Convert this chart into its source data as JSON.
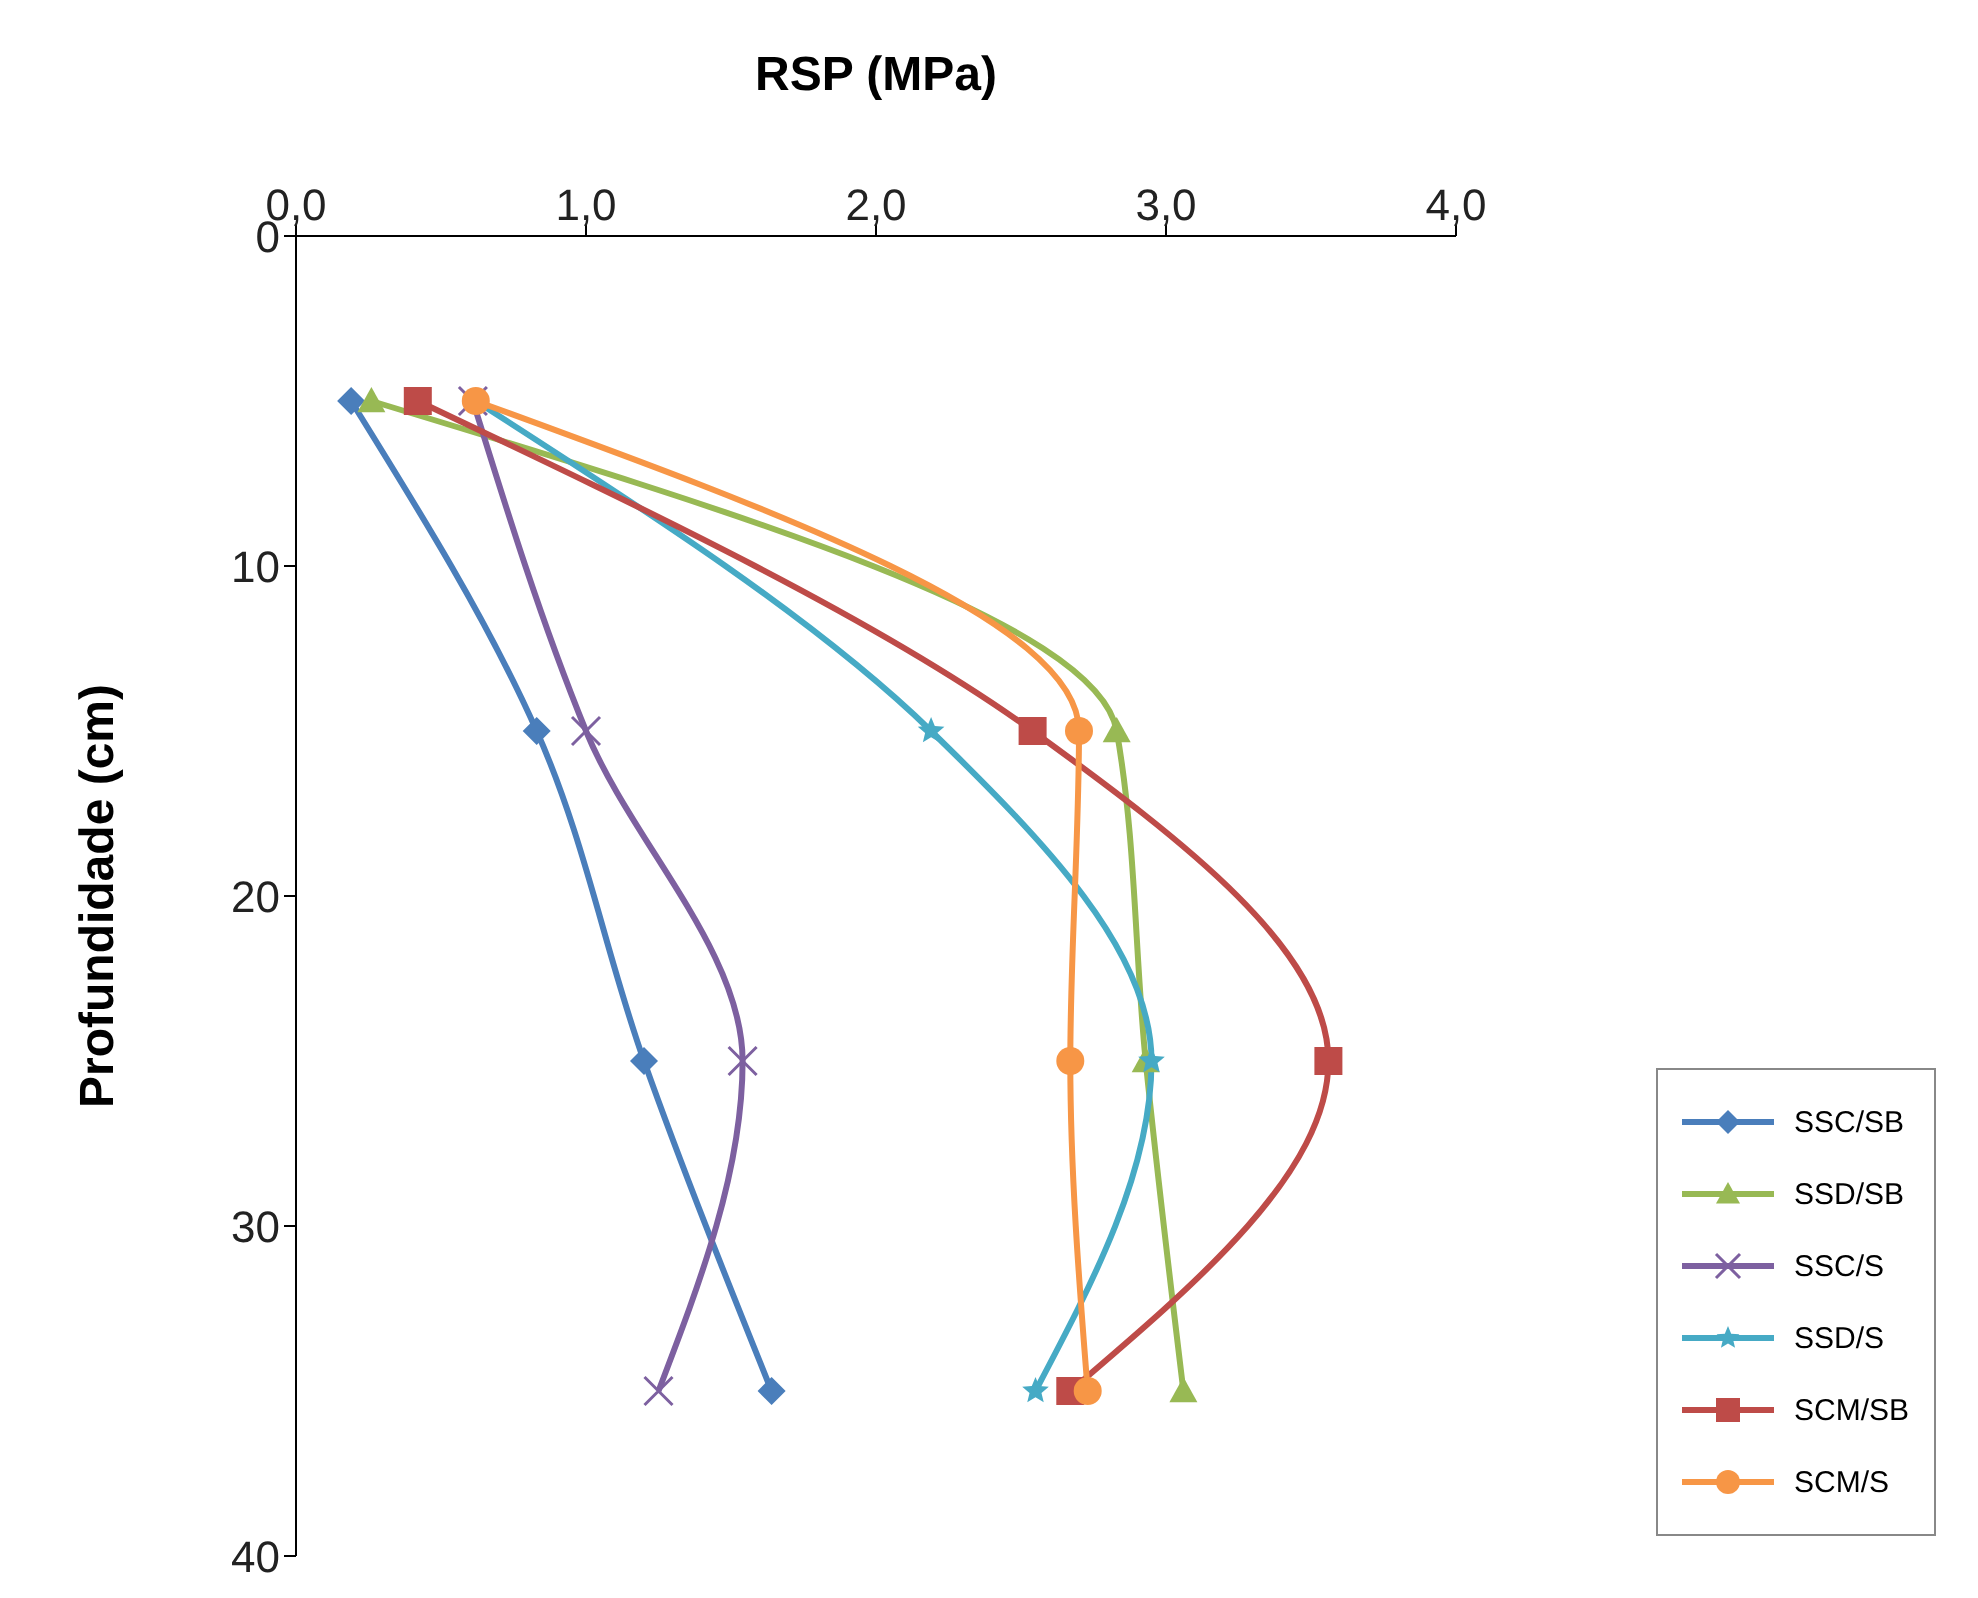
{
  "chart_data": {
    "type": "line",
    "orientation": "horizontal",
    "xlabel": "RSP (MPa)",
    "ylabel": "Profundidade (cm)",
    "x": [
      5,
      15,
      25,
      35
    ],
    "xlim": [
      0,
      4
    ],
    "xticks": [
      {
        "value": 0,
        "label": "0,0"
      },
      {
        "value": 1,
        "label": "1,0"
      },
      {
        "value": 2,
        "label": "2,0"
      },
      {
        "value": 3,
        "label": "3,0"
      },
      {
        "value": 4,
        "label": "4,0"
      }
    ],
    "ylim": [
      40,
      0
    ],
    "yticks": [
      0,
      10,
      20,
      30,
      40
    ],
    "grid": false,
    "legend": "bottom right",
    "series": [
      {
        "name": "SSC/SB",
        "color": "#4a7ebb",
        "marker": "diamond",
        "values": [
          0.19,
          0.83,
          1.2,
          1.64
        ]
      },
      {
        "name": "SSD/SB",
        "color": "#98b954",
        "marker": "triangle",
        "values": [
          0.26,
          2.83,
          2.93,
          3.06
        ]
      },
      {
        "name": "SSC/S",
        "color": "#7d60a0",
        "marker": "cross",
        "values": [
          0.61,
          1.0,
          1.54,
          1.25
        ]
      },
      {
        "name": "SSD/S",
        "color": "#46aac5",
        "marker": "star",
        "values": [
          0.62,
          2.19,
          2.95,
          2.55
        ]
      },
      {
        "name": "SCM/SB",
        "color": "#be4b48",
        "marker": "square",
        "values": [
          0.42,
          2.54,
          3.56,
          2.67
        ]
      },
      {
        "name": "SCM/S",
        "color": "#f79646",
        "marker": "circle",
        "values": [
          0.62,
          2.7,
          2.67,
          2.73
        ]
      }
    ]
  }
}
